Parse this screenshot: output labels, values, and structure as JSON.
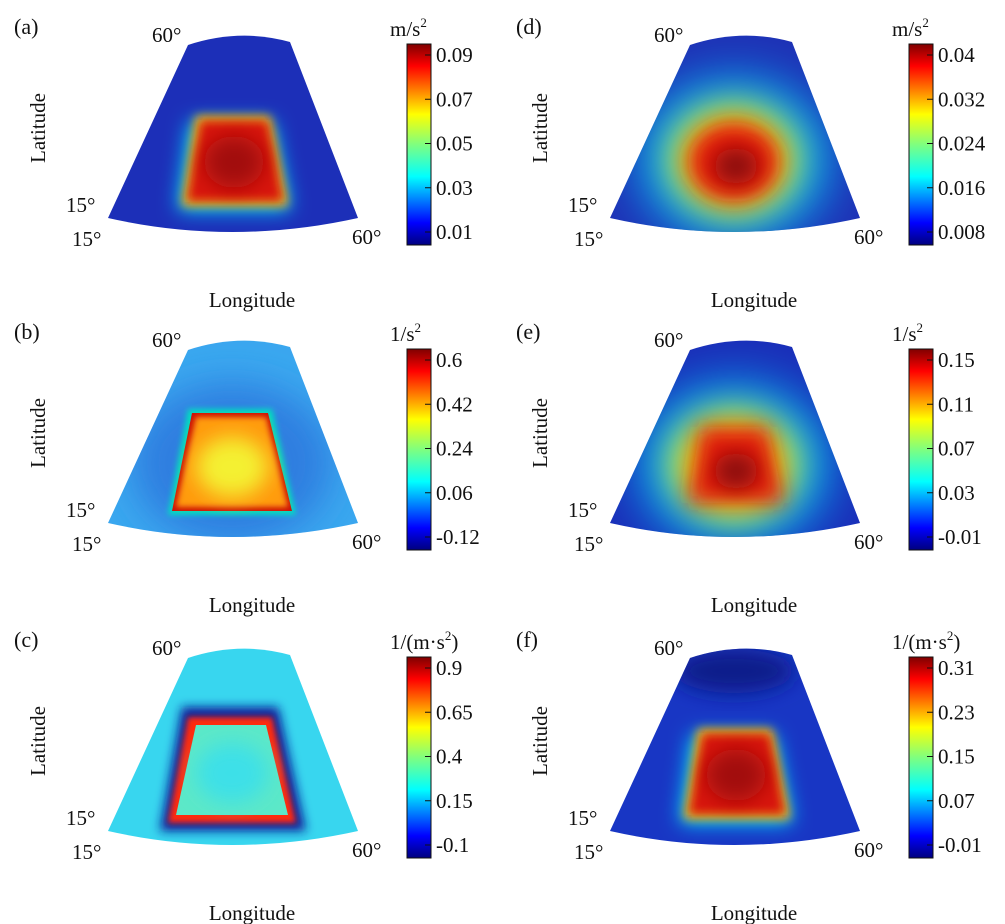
{
  "figure": {
    "xlabel": "Longitude",
    "ylabel": "Latitude",
    "corner_labels": {
      "top_left": "60°",
      "left_low": "15°",
      "bottom_left": "15°",
      "bottom_right": "60°"
    }
  },
  "chart_data": [
    {
      "panel": "(a)",
      "type": "heatmap",
      "pattern": "plateau",
      "background": "#1c2fb8",
      "unit_main": "m/s",
      "unit_sup": "2",
      "colorbar_ticks": [
        "0.09",
        "0.07",
        "0.05",
        "0.03",
        "0.01"
      ]
    },
    {
      "panel": "(b)",
      "type": "heatmap",
      "pattern": "ring",
      "background": "#3aa7ef",
      "unit_main": "1/s",
      "unit_sup": "2",
      "colorbar_ticks": [
        "0.6",
        "0.42",
        "0.24",
        "0.06",
        "-0.12"
      ]
    },
    {
      "panel": "(c)",
      "type": "heatmap",
      "pattern": "ring_dark",
      "background": "#38d6ef",
      "unit_main": "1/(m·s",
      "unit_sup": "2",
      "unit_tail": ")",
      "colorbar_ticks": [
        "0.9",
        "0.65",
        "0.4",
        "0.15",
        "-0.1"
      ]
    },
    {
      "panel": "(d)",
      "type": "heatmap",
      "pattern": "smooth",
      "background": "#1e2fb5",
      "unit_main": "m/s",
      "unit_sup": "2",
      "colorbar_ticks": [
        "0.04",
        "0.032",
        "0.024",
        "0.016",
        "0.008"
      ]
    },
    {
      "panel": "(e)",
      "type": "heatmap",
      "pattern": "smooth_box",
      "background": "#1a2cb8",
      "unit_main": "1/s",
      "unit_sup": "2",
      "colorbar_ticks": [
        "0.15",
        "0.11",
        "0.07",
        "0.03",
        "-0.01"
      ]
    },
    {
      "panel": "(f)",
      "type": "heatmap",
      "pattern": "plateau_dark",
      "background": "#1836c4",
      "unit_main": "1/(m·s",
      "unit_sup": "2",
      "unit_tail": ")",
      "colorbar_ticks": [
        "0.31",
        "0.23",
        "0.15",
        "0.07",
        "-0.01"
      ]
    }
  ]
}
